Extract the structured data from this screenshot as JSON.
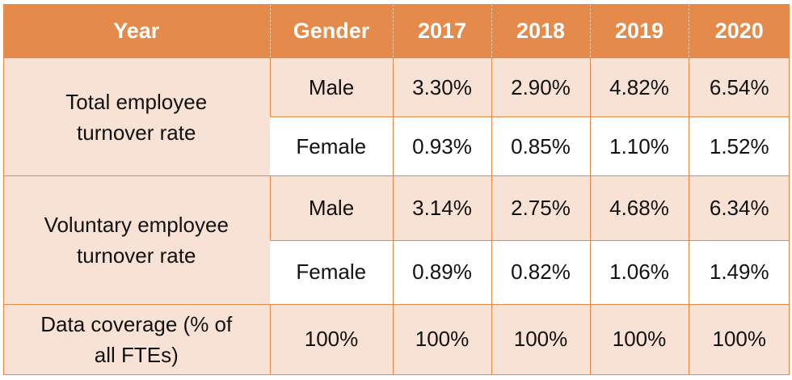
{
  "table": {
    "headers": [
      "Year",
      "Gender",
      "2017",
      "2018",
      "2019",
      "2020"
    ],
    "groups": [
      {
        "label": "Total employee turnover rate",
        "rows": [
          {
            "gender": "Male",
            "values": [
              "3.30%",
              "2.90%",
              "4.82%",
              "6.54%"
            ]
          },
          {
            "gender": "Female",
            "values": [
              "0.93%",
              "0.85%",
              "1.10%",
              "1.52%"
            ]
          }
        ]
      },
      {
        "label": "Voluntary employee turnover rate",
        "rows": [
          {
            "gender": "Male",
            "values": [
              "3.14%",
              "2.75%",
              "4.68%",
              "6.34%"
            ]
          },
          {
            "gender": "Female",
            "values": [
              "0.89%",
              "0.82%",
              "1.06%",
              "1.49%"
            ]
          }
        ]
      }
    ],
    "coverage": {
      "label": "Data coverage (% of all FTEs)",
      "values": [
        "100%",
        "100%",
        "100%",
        "100%",
        "100%"
      ]
    }
  },
  "colors": {
    "header_bg": "#e48a4a",
    "band_bg": "#f8e2d5",
    "white_bg": "#ffffff"
  }
}
